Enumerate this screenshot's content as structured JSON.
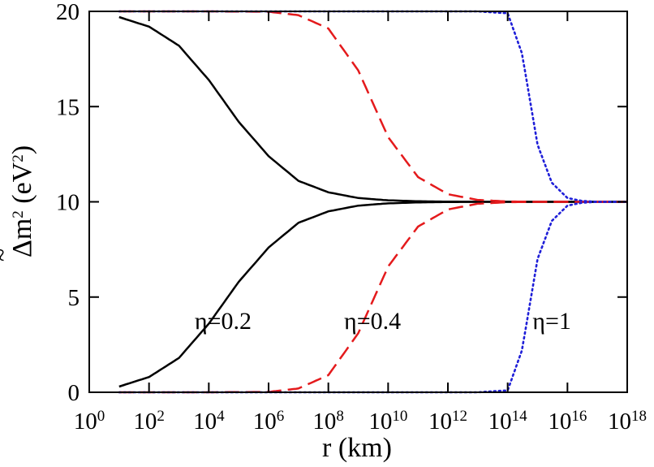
{
  "chart_data": {
    "type": "line",
    "x_scale": "log",
    "xlim": [
      1,
      1e+18
    ],
    "ylim": [
      0,
      20
    ],
    "grid": false,
    "xlabel": "r (km)",
    "ylabel": {
      "prefix": "Δm",
      "sup": "2",
      "unit_open": " (eV",
      "unit_sup": "2",
      "unit_close": ")"
    },
    "x_ticks": [
      {
        "value": 1,
        "base": "10",
        "exp": "0"
      },
      {
        "value": 100.0,
        "base": "10",
        "exp": "2"
      },
      {
        "value": 10000.0,
        "base": "10",
        "exp": "4"
      },
      {
        "value": 1000000.0,
        "base": "10",
        "exp": "6"
      },
      {
        "value": 100000000.0,
        "base": "10",
        "exp": "8"
      },
      {
        "value": 10000000000.0,
        "base": "10",
        "exp": "10"
      },
      {
        "value": 1000000000000.0,
        "base": "10",
        "exp": "12"
      },
      {
        "value": 100000000000000.0,
        "base": "10",
        "exp": "14"
      },
      {
        "value": 1e+16,
        "base": "10",
        "exp": "16"
      },
      {
        "value": 1e+18,
        "base": "10",
        "exp": "18"
      }
    ],
    "y_ticks": [
      {
        "value": 0,
        "label": "0"
      },
      {
        "value": 5,
        "label": "5"
      },
      {
        "value": 10,
        "label": "10"
      },
      {
        "value": 15,
        "label": "15"
      },
      {
        "value": 20,
        "label": "20"
      }
    ],
    "series": [
      {
        "key": "eta02-upper",
        "color": "#000000",
        "dash": "solid",
        "x": [
          10.0,
          100.0,
          1000.0,
          10000.0,
          100000.0,
          1000000.0,
          10000000.0,
          100000000.0,
          1000000000.0,
          10000000000.0,
          100000000000.0,
          1000000000000.0,
          10000000000000.0,
          100000000000000.0,
          1000000000000000.0,
          1e+16,
          1e+17,
          1e+18
        ],
        "y": [
          19.7,
          19.2,
          18.2,
          16.4,
          14.2,
          12.4,
          11.1,
          10.5,
          10.2,
          10.08,
          10.03,
          10.01,
          10.0,
          10.0,
          10.0,
          10.0,
          10.0,
          10.0
        ]
      },
      {
        "key": "eta02-lower",
        "color": "#000000",
        "dash": "solid",
        "x": [
          10.0,
          100.0,
          1000.0,
          10000.0,
          100000.0,
          1000000.0,
          10000000.0,
          100000000.0,
          1000000000.0,
          10000000000.0,
          100000000000.0,
          1000000000000.0,
          10000000000000.0,
          100000000000000.0,
          1000000000000000.0,
          1e+16,
          1e+17,
          1e+18
        ],
        "y": [
          0.3,
          0.8,
          1.8,
          3.6,
          5.8,
          7.6,
          8.9,
          9.5,
          9.8,
          9.92,
          9.97,
          9.99,
          10.0,
          10.0,
          10.0,
          10.0,
          10.0,
          10.0
        ]
      },
      {
        "key": "eta04-upper",
        "color": "#e41a1c",
        "dash": "dashed",
        "x": [
          10.0,
          10000.0,
          1000000.0,
          10000000.0,
          100000000.0,
          1000000000.0,
          10000000000.0,
          100000000000.0,
          1000000000000.0,
          10000000000000.0,
          100000000000000.0,
          1000000000000000.0,
          1e+16,
          1e+17,
          1e+18
        ],
        "y": [
          20.0,
          20.0,
          19.98,
          19.8,
          19.1,
          16.9,
          13.4,
          11.3,
          10.4,
          10.1,
          10.02,
          10.0,
          10.0,
          10.0,
          10.0
        ]
      },
      {
        "key": "eta04-lower",
        "color": "#e41a1c",
        "dash": "dashed",
        "x": [
          10.0,
          10000.0,
          1000000.0,
          10000000.0,
          100000000.0,
          1000000000.0,
          10000000000.0,
          100000000000.0,
          1000000000000.0,
          10000000000000.0,
          100000000000000.0,
          1000000000000000.0,
          1e+16,
          1e+17,
          1e+18
        ],
        "y": [
          0.0,
          0.0,
          0.02,
          0.2,
          0.9,
          3.1,
          6.6,
          8.7,
          9.6,
          9.9,
          9.98,
          10.0,
          10.0,
          10.0,
          10.0
        ]
      },
      {
        "key": "eta1-upper",
        "color": "#1f1fd8",
        "dash": "dotted",
        "x": [
          10.0,
          1000000000000.0,
          10000000000000.0,
          100000000000000.0,
          300000000000000.0,
          1000000000000000.0,
          3000000000000000.0,
          1e+16,
          3e+16,
          1e+17,
          1e+18
        ],
        "y": [
          20.0,
          20.0,
          20.0,
          19.9,
          17.8,
          13.0,
          11.0,
          10.2,
          10.05,
          10.0,
          10.0
        ]
      },
      {
        "key": "eta1-lower",
        "color": "#1f1fd8",
        "dash": "dotted",
        "x": [
          10.0,
          1000000000000.0,
          10000000000000.0,
          100000000000000.0,
          300000000000000.0,
          1000000000000000.0,
          3000000000000000.0,
          1e+16,
          3e+16,
          1e+17,
          1e+18
        ],
        "y": [
          0.0,
          0.0,
          0.0,
          0.1,
          2.2,
          7.0,
          9.0,
          9.8,
          9.95,
          10.0,
          10.0
        ]
      }
    ],
    "annotations": [
      {
        "key": "eta02",
        "text": "η=0.2",
        "x": 30000.0,
        "y": 3.8
      },
      {
        "key": "eta04",
        "text": "η=0.4",
        "x": 3000000000.0,
        "y": 3.8
      },
      {
        "key": "eta1",
        "text": "η=1",
        "x": 3000000000000000.0,
        "y": 3.8
      }
    ]
  }
}
